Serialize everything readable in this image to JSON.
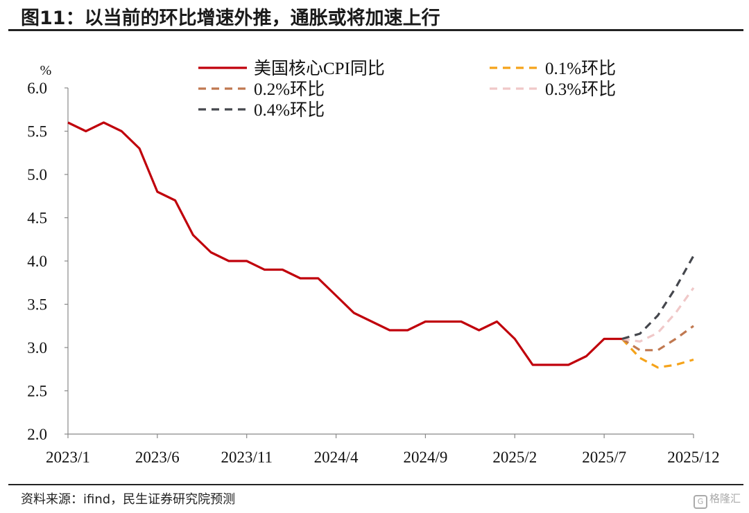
{
  "header": {
    "title": "图11：以当前的环比增速外推，通胀或将加速上行"
  },
  "footer": {
    "source": "资料来源：ifind，民生证券研究院预测",
    "watermark": "格隆汇"
  },
  "chart_data": {
    "type": "line",
    "y_unit": "%",
    "ylim": [
      2.0,
      6.0
    ],
    "y_ticks": [
      "6.0",
      "5.5",
      "5.0",
      "4.5",
      "4.0",
      "3.5",
      "3.0",
      "2.5",
      "2.0"
    ],
    "x_range": [
      "2023/1",
      "2025/12"
    ],
    "x_tick_labels": [
      "2023/1",
      "2023/6",
      "2023/11",
      "2024/4",
      "2024/9",
      "2025/2",
      "2025/7",
      "2025/12"
    ],
    "grid": false,
    "legend_position": "top",
    "series": [
      {
        "name": "美国核心CPI同比",
        "color": "#c0000b",
        "style": "solid",
        "x": [
          "2023/1",
          "2023/2",
          "2023/3",
          "2023/4",
          "2023/5",
          "2023/6",
          "2023/7",
          "2023/8",
          "2023/9",
          "2023/10",
          "2023/11",
          "2023/12",
          "2024/1",
          "2024/2",
          "2024/3",
          "2024/4",
          "2024/5",
          "2024/6",
          "2024/7",
          "2024/8",
          "2024/9",
          "2024/10",
          "2024/11",
          "2024/12",
          "2025/1",
          "2025/2",
          "2025/3",
          "2025/4",
          "2025/5",
          "2025/6",
          "2025/7",
          "2025/8"
        ],
        "values": [
          5.6,
          5.5,
          5.6,
          5.5,
          5.3,
          4.8,
          4.7,
          4.3,
          4.1,
          4.0,
          4.0,
          3.9,
          3.9,
          3.8,
          3.8,
          3.6,
          3.4,
          3.3,
          3.2,
          3.2,
          3.3,
          3.3,
          3.3,
          3.2,
          3.3,
          3.1,
          2.8,
          2.8,
          2.8,
          2.9,
          3.1,
          3.1
        ]
      },
      {
        "name": "0.1%环比",
        "color": "#f5a31a",
        "style": "dashed",
        "x": [
          "2025/8",
          "2025/9",
          "2025/10",
          "2025/11",
          "2025/12"
        ],
        "values": [
          3.1,
          2.88,
          2.77,
          2.8,
          2.86
        ]
      },
      {
        "name": "0.2%环比",
        "color": "#c07850",
        "style": "dashed",
        "x": [
          "2025/8",
          "2025/9",
          "2025/10",
          "2025/11",
          "2025/12"
        ],
        "values": [
          3.1,
          2.97,
          2.97,
          3.1,
          3.25
        ]
      },
      {
        "name": "0.3%环比",
        "color": "#f0c8c8",
        "style": "dashed",
        "x": [
          "2025/8",
          "2025/9",
          "2025/10",
          "2025/11",
          "2025/12"
        ],
        "values": [
          3.1,
          3.07,
          3.17,
          3.4,
          3.69
        ]
      },
      {
        "name": "0.4%环比",
        "color": "#45474d",
        "style": "dashed",
        "x": [
          "2025/8",
          "2025/9",
          "2025/10",
          "2025/11",
          "2025/12"
        ],
        "values": [
          3.1,
          3.16,
          3.37,
          3.69,
          4.06
        ]
      }
    ]
  }
}
